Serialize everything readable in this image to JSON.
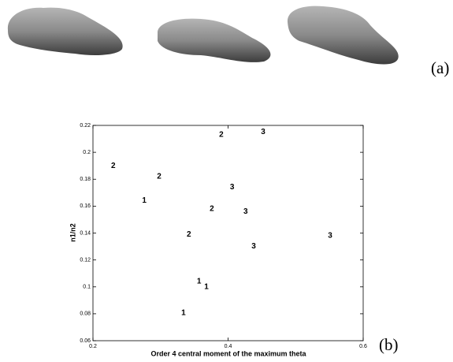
{
  "panel_labels": [
    "(a)",
    "(b)"
  ],
  "chart_data": {
    "type": "scatter",
    "xlabel": "Order 4 central moment of the maximum theta",
    "ylabel": "n1/n2",
    "xlim": [
      0.2,
      0.6
    ],
    "xticks": [
      0.2,
      0.4,
      0.6
    ],
    "ylim": [
      0.06,
      0.22
    ],
    "yticks": [
      0.06,
      0.08,
      0.1,
      0.12,
      0.14,
      0.16,
      0.18,
      0.2,
      0.22
    ],
    "series": [
      {
        "name": "1",
        "color": "#000000",
        "x": [
          0.276,
          0.357,
          0.368,
          0.334
        ],
        "y": [
          0.164,
          0.104,
          0.1,
          0.0805
        ]
      },
      {
        "name": "2",
        "color": "#000000",
        "x": [
          0.23,
          0.298,
          0.39,
          0.376,
          0.342
        ],
        "y": [
          0.19,
          0.182,
          0.213,
          0.158,
          0.139
        ]
      },
      {
        "name": "3",
        "color": "#000000",
        "x": [
          0.452,
          0.406,
          0.426,
          0.438,
          0.551
        ],
        "y": [
          0.215,
          0.174,
          0.156,
          0.13,
          0.138
        ]
      }
    ]
  }
}
